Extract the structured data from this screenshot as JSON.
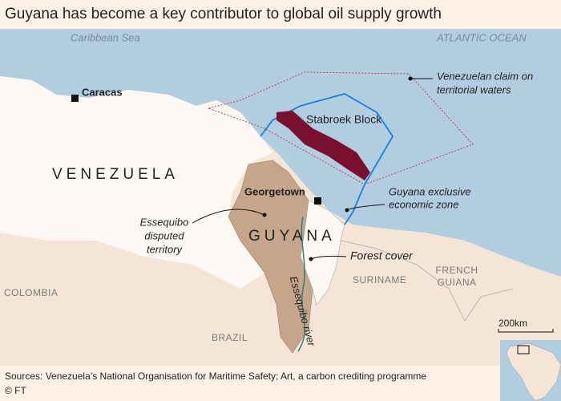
{
  "title": "Guyana has become a key contributor to global oil supply growth",
  "labels": {
    "caribbean_sea": "Caribbean Sea",
    "atlantic_ocean": "ATLANTIC OCEAN",
    "caracas": "Caracas",
    "venezuelan_claim": [
      "Venezuelan claim on",
      "territorial waters"
    ],
    "stabroek_block": "Stabroek Block",
    "venezuela": "VENEZUELA",
    "georgetown": "Georgetown",
    "guyana_eez": [
      "Guyana exclusive",
      "economic zone"
    ],
    "essequibo_territory": [
      "Essequibo",
      "disputed",
      "territory"
    ],
    "guyana": "GUYANA",
    "forest_cover": "Forest cover",
    "suriname": "SURINAME",
    "french_guiana": [
      "FRENCH",
      "GUIANA"
    ],
    "colombia": "COLOMBIA",
    "brazil": "BRAZIL",
    "essequibo_river": "Essequibo river"
  },
  "scale": "200km",
  "footer": {
    "sources": "Sources: Venezuela’s National Organisation for Maritime Safety; Art, a carbon crediting programme",
    "credit": "© FT"
  }
}
